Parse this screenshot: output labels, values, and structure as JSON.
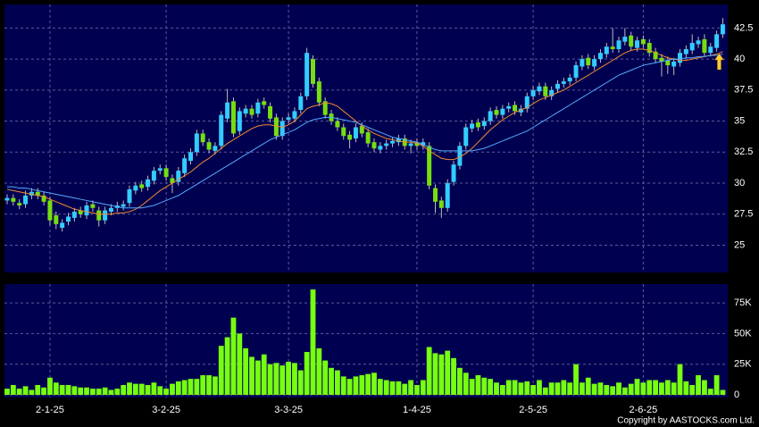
{
  "chart_data": [
    {
      "type": "candlestick",
      "open": [
        28.6,
        28.8,
        28.4,
        28.3,
        29.0,
        29.3,
        29.0,
        28.6,
        27.4,
        26.4,
        26.9,
        27.2,
        27.8,
        27.4,
        28.3,
        27.8,
        27.0,
        27.7,
        28.0,
        28.1,
        28.4,
        29.4,
        29.9,
        29.7,
        30.2,
        31.0,
        31.2,
        30.4,
        30.1,
        30.8,
        31.8,
        32.5,
        34.0,
        33.3,
        32.6,
        33.0,
        35.2,
        36.6,
        34.2,
        35.6,
        36.0,
        35.6,
        36.6,
        36.2,
        35.3,
        33.8,
        35.1,
        35.2,
        35.9,
        37.0,
        40.0,
        38.2,
        36.6,
        35.6,
        35.0,
        34.5,
        33.9,
        33.6,
        34.6,
        34.1,
        33.3,
        32.7,
        33.0,
        33.2,
        33.3,
        33.6,
        33.0,
        33.3,
        33.0,
        33.0,
        29.6,
        28.6,
        28.0,
        30.1,
        31.4,
        33.0,
        34.4,
        34.9,
        34.6,
        35.0,
        35.9,
        35.5,
        36.0,
        36.3,
        35.7,
        36.0,
        37.0,
        37.4,
        37.8,
        37.0,
        37.6,
        38.0,
        38.2,
        38.5,
        39.4,
        40.1,
        39.4,
        40.0,
        40.4,
        41.0,
        40.8,
        41.4,
        41.9,
        40.9,
        41.6,
        41.3,
        40.6,
        40.1,
        39.9,
        39.4,
        39.7,
        40.4,
        40.7,
        41.2,
        41.6,
        40.5,
        40.9,
        42.0
      ],
      "high": [
        29.1,
        29.1,
        28.7,
        29.4,
        29.6,
        29.6,
        29.3,
        28.9,
        27.7,
        27.1,
        27.6,
        28.0,
        28.1,
        28.5,
        28.6,
        28.1,
        28.1,
        28.3,
        28.5,
        28.6,
        29.8,
        30.1,
        30.2,
        30.6,
        31.3,
        31.5,
        31.5,
        30.7,
        31.3,
        32.3,
        32.8,
        34.3,
        34.3,
        33.6,
        33.3,
        35.8,
        37.6,
        36.9,
        36.1,
        36.3,
        36.3,
        36.8,
        36.9,
        36.5,
        35.6,
        35.3,
        35.6,
        36.1,
        37.3,
        40.9,
        40.3,
        38.5,
        36.9,
        35.9,
        35.3,
        34.8,
        34.2,
        34.8,
        34.9,
        34.4,
        33.6,
        33.3,
        33.5,
        33.7,
        33.9,
        33.9,
        33.5,
        33.6,
        33.6,
        33.3,
        29.9,
        28.9,
        30.3,
        31.8,
        33.3,
        34.8,
        35.1,
        35.2,
        35.3,
        36.1,
        36.2,
        36.3,
        36.5,
        36.6,
        36.3,
        37.3,
        37.8,
        38.1,
        38.1,
        37.8,
        38.3,
        38.5,
        38.8,
        39.8,
        40.3,
        40.4,
        40.3,
        40.8,
        41.3,
        42.5,
        41.8,
        42.5,
        42.2,
        41.8,
        41.9,
        41.6,
        40.9,
        40.4,
        40.2,
        40.1,
        40.8,
        41.1,
        42.0,
        41.8,
        42.0,
        41.3,
        42.3,
        43.3
      ],
      "low": [
        28.3,
        28.2,
        27.9,
        28.0,
        28.7,
        28.7,
        28.2,
        26.6,
        26.3,
        26.1,
        26.6,
        26.9,
        27.2,
        27.1,
        27.7,
        26.5,
        26.7,
        27.4,
        27.7,
        27.8,
        28.1,
        29.1,
        29.3,
        29.4,
        29.9,
        30.7,
        30.2,
        29.2,
        29.8,
        30.5,
        31.5,
        32.2,
        33.0,
        32.4,
        32.3,
        32.7,
        34.9,
        33.7,
        33.9,
        35.3,
        35.2,
        35.3,
        36.0,
        34.9,
        33.5,
        33.5,
        34.8,
        34.9,
        35.6,
        36.7,
        37.7,
        36.2,
        35.2,
        34.7,
        34.2,
        33.5,
        32.8,
        33.3,
        33.7,
        32.9,
        32.5,
        32.4,
        32.7,
        32.9,
        33.0,
        32.7,
        32.4,
        32.7,
        32.7,
        29.5,
        27.6,
        27.2,
        27.7,
        29.8,
        31.1,
        32.7,
        34.1,
        34.2,
        34.3,
        34.7,
        35.2,
        35.2,
        35.7,
        35.5,
        35.4,
        35.7,
        36.7,
        37.1,
        36.7,
        36.7,
        37.3,
        37.7,
        37.9,
        38.2,
        39.1,
        39.2,
        39.1,
        39.7,
        40.1,
        40.5,
        40.5,
        41.1,
        40.7,
        40.6,
        40.9,
        40.2,
        39.7,
        38.6,
        38.8,
        38.7,
        39.4,
        40.1,
        40.4,
        40.9,
        40.2,
        40.2,
        40.6,
        41.7
      ],
      "close": [
        28.8,
        28.5,
        28.2,
        29.0,
        29.3,
        29.0,
        28.5,
        27.0,
        26.7,
        26.8,
        27.3,
        27.7,
        27.5,
        28.2,
        28.0,
        27.0,
        27.8,
        28.0,
        28.2,
        28.3,
        29.5,
        29.8,
        29.6,
        30.3,
        31.0,
        31.2,
        30.5,
        30.0,
        31.0,
        32.0,
        32.5,
        34.0,
        33.3,
        32.7,
        33.0,
        35.5,
        36.5,
        34.0,
        35.8,
        36.0,
        35.5,
        36.5,
        36.3,
        35.2,
        33.8,
        35.0,
        35.3,
        35.8,
        37.0,
        40.5,
        38.0,
        36.5,
        35.5,
        35.0,
        34.5,
        33.8,
        33.5,
        34.5,
        34.0,
        33.2,
        32.8,
        33.0,
        33.2,
        33.4,
        33.6,
        33.0,
        33.2,
        33.0,
        33.3,
        29.8,
        28.5,
        28.0,
        30.0,
        31.5,
        33.0,
        34.5,
        34.8,
        34.5,
        35.0,
        35.8,
        35.5,
        36.0,
        36.2,
        35.8,
        36.0,
        37.0,
        37.5,
        37.8,
        37.0,
        37.5,
        38.0,
        38.2,
        38.5,
        39.5,
        40.0,
        39.5,
        40.0,
        40.5,
        41.0,
        40.8,
        41.5,
        41.8,
        41.0,
        41.5,
        41.2,
        40.5,
        40.0,
        39.8,
        39.5,
        39.8,
        40.5,
        40.8,
        41.3,
        41.5,
        40.5,
        41.0,
        42.0,
        42.8
      ],
      "up_color": "#33ccff",
      "down_color": "#77dd11",
      "series": [
        {
          "color": "#f08a30",
          "values": [
            29.5,
            29.4,
            29.3,
            29.2,
            29.1,
            29.0,
            28.9,
            28.7,
            28.5,
            28.3,
            28.1,
            27.9,
            27.8,
            27.7,
            27.6,
            27.5,
            27.5,
            27.5,
            27.6,
            27.6,
            27.7,
            27.9,
            28.2,
            28.6,
            29.0,
            29.4,
            29.7,
            30.0,
            30.3,
            30.6,
            30.9,
            31.3,
            31.7,
            32.0,
            32.4,
            32.8,
            33.2,
            33.5,
            33.8,
            34.1,
            34.4,
            34.6,
            34.7,
            34.7,
            34.6,
            34.5,
            34.7,
            35.0,
            35.5,
            36.0,
            36.2,
            36.3,
            36.5,
            36.4,
            36.2,
            35.8,
            35.4,
            35.0,
            34.6,
            34.3,
            34.0,
            33.8,
            33.6,
            33.5,
            33.4,
            33.3,
            33.3,
            33.2,
            33.0,
            32.6,
            32.3,
            32.0,
            31.9,
            31.9,
            32.1,
            32.4,
            32.8,
            33.3,
            33.8,
            34.3,
            34.7,
            35.1,
            35.4,
            35.7,
            35.9,
            36.1,
            36.4,
            36.7,
            36.9,
            37.1,
            37.3,
            37.5,
            37.8,
            38.1,
            38.4,
            38.7,
            39.0,
            39.3,
            39.6,
            39.9,
            40.2,
            40.5,
            40.7,
            40.8,
            40.8,
            40.7,
            40.5,
            40.3,
            40.1,
            40.0,
            39.9,
            39.9,
            40.0,
            40.1,
            40.2,
            40.3,
            40.4,
            40.6
          ]
        },
        {
          "color": "#55aaff",
          "values": [
            29.7,
            29.7,
            29.6,
            29.6,
            29.5,
            29.4,
            29.3,
            29.2,
            29.1,
            29.0,
            28.9,
            28.8,
            28.7,
            28.6,
            28.5,
            28.4,
            28.3,
            28.2,
            28.1,
            28.0,
            28.0,
            28.0,
            28.0,
            28.1,
            28.2,
            28.4,
            28.6,
            28.8,
            29.0,
            29.3,
            29.6,
            29.9,
            30.2,
            30.5,
            30.8,
            31.1,
            31.4,
            31.7,
            32.0,
            32.3,
            32.6,
            32.9,
            33.2,
            33.5,
            33.7,
            33.9,
            34.1,
            34.3,
            34.6,
            34.9,
            35.1,
            35.2,
            35.3,
            35.3,
            35.2,
            35.1,
            35.0,
            34.9,
            34.7,
            34.5,
            34.3,
            34.1,
            33.9,
            33.7,
            33.6,
            33.5,
            33.4,
            33.3,
            33.1,
            32.9,
            32.7,
            32.6,
            32.6,
            32.6,
            32.6,
            32.6,
            32.6,
            32.7,
            32.8,
            33.0,
            33.2,
            33.4,
            33.6,
            33.8,
            34.0,
            34.2,
            34.5,
            34.8,
            35.1,
            35.4,
            35.7,
            36.0,
            36.3,
            36.6,
            36.9,
            37.2,
            37.5,
            37.8,
            38.1,
            38.4,
            38.7,
            38.9,
            39.1,
            39.3,
            39.5,
            39.6,
            39.7,
            39.8,
            39.9,
            40.0,
            40.0,
            40.1,
            40.1,
            40.2,
            40.2,
            40.3,
            40.3,
            40.4
          ]
        }
      ],
      "ylim": [
        22.8,
        44.4
      ],
      "yticks": [
        25,
        27.5,
        30,
        32.5,
        35,
        37.5,
        40,
        42.5
      ],
      "grid": true
    },
    {
      "type": "bar",
      "categories": [
        null,
        null,
        null,
        null,
        null,
        null,
        null,
        "2-1-25",
        null,
        null,
        null,
        null,
        null,
        null,
        null,
        null,
        null,
        null,
        null,
        null,
        null,
        null,
        null,
        null,
        null,
        null,
        "3-2-25",
        null,
        null,
        null,
        null,
        null,
        null,
        null,
        null,
        null,
        null,
        null,
        null,
        null,
        null,
        null,
        null,
        null,
        null,
        null,
        "3-3-25",
        null,
        null,
        null,
        null,
        null,
        null,
        null,
        null,
        null,
        null,
        null,
        null,
        null,
        null,
        null,
        null,
        null,
        null,
        null,
        null,
        "1-4-25",
        null,
        null,
        null,
        null,
        null,
        null,
        null,
        null,
        null,
        null,
        null,
        null,
        null,
        null,
        null,
        null,
        null,
        null,
        "2-5-25",
        null,
        null,
        null,
        null,
        null,
        null,
        null,
        null,
        null,
        null,
        null,
        null,
        null,
        null,
        null,
        null,
        null,
        "2-6-25",
        null,
        null,
        null,
        null,
        null,
        null,
        null,
        null,
        null,
        null,
        null,
        null,
        null
      ],
      "values": [
        5000,
        8000,
        5000,
        7000,
        4000,
        8000,
        6000,
        14000,
        10000,
        8000,
        8000,
        7000,
        6000,
        6000,
        5000,
        5000,
        6000,
        4000,
        5000,
        8000,
        10000,
        9000,
        9000,
        8000,
        10000,
        7000,
        5000,
        9000,
        11000,
        12000,
        13000,
        13000,
        16000,
        16000,
        15000,
        40000,
        47000,
        63000,
        50000,
        38000,
        31000,
        28000,
        33000,
        25000,
        26000,
        24000,
        27000,
        26000,
        20000,
        35000,
        86000,
        38000,
        28000,
        22000,
        20000,
        15000,
        13000,
        15000,
        16000,
        17000,
        18000,
        13000,
        12000,
        11000,
        11000,
        9000,
        12000,
        8000,
        12000,
        39000,
        34000,
        33000,
        36000,
        30000,
        22000,
        18000,
        13000,
        16000,
        14000,
        13000,
        10000,
        8000,
        12000,
        12000,
        10000,
        11000,
        8000,
        12000,
        6000,
        10000,
        10000,
        12000,
        10000,
        25000,
        10000,
        14000,
        9000,
        10000,
        8000,
        7000,
        10000,
        6000,
        9000,
        13000,
        10000,
        12000,
        12000,
        10000,
        12000,
        10000,
        25000,
        11000,
        8000,
        16000,
        12000,
        5000,
        16000,
        4000
      ],
      "color": "#77ff11",
      "ylim": [
        -2200,
        90400
      ],
      "yticks": [
        0,
        {
          "value": 25000,
          "label": "25K"
        },
        {
          "value": 50000,
          "label": "50K"
        },
        {
          "value": 75000,
          "label": "75K"
        }
      ],
      "grid": true
    }
  ],
  "footer": {
    "copyright": "Copyright by AASTOCKS.com Ltd."
  }
}
